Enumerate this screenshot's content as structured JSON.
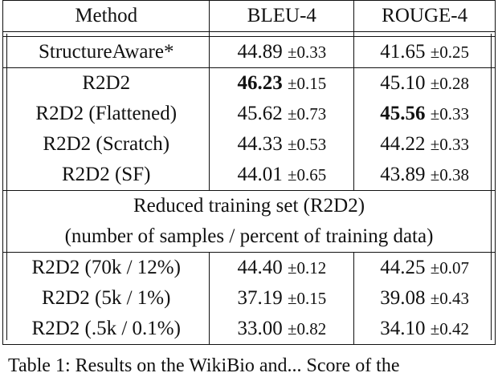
{
  "header": {
    "method": "Method",
    "bleu": "BLEU-4",
    "rouge": "ROUGE-4"
  },
  "baseline": [
    {
      "method": "StructureAware*",
      "bleu": "44.89",
      "bleu_pm": "±0.33",
      "rouge": "41.65",
      "rouge_pm": "±0.25"
    }
  ],
  "main": [
    {
      "method": "R2D2",
      "bleu": "46.23",
      "bleu_pm": "±0.15",
      "rouge": "45.10",
      "rouge_pm": "±0.28"
    },
    {
      "method": "R2D2 (Flattened)",
      "bleu": "45.62",
      "bleu_pm": "±0.73",
      "rouge": "45.56",
      "rouge_pm": "±0.33"
    },
    {
      "method": "R2D2 (Scratch)",
      "bleu": "44.33",
      "bleu_pm": "±0.53",
      "rouge": "44.22",
      "rouge_pm": "±0.33"
    },
    {
      "method": "R2D2 (SF)",
      "bleu": "44.01",
      "bleu_pm": "±0.65",
      "rouge": "43.89",
      "rouge_pm": "±0.38"
    }
  ],
  "reduced_section": {
    "title": "Reduced training set (R2D2)",
    "subtitle": "(number of samples / percent of training data)"
  },
  "reduced": [
    {
      "method": "R2D2 (70k / 12%)",
      "bleu": "44.40",
      "bleu_pm": "±0.12",
      "rouge": "44.25",
      "rouge_pm": "±0.07"
    },
    {
      "method": "R2D2 (5k / 1%)",
      "bleu": "37.19",
      "bleu_pm": "±0.15",
      "rouge": "39.08",
      "rouge_pm": "±0.43"
    },
    {
      "method": "R2D2 (.5k / 0.1%)",
      "bleu": "33.00",
      "bleu_pm": "±0.82",
      "rouge": "34.10",
      "rouge_pm": "±0.42"
    }
  ],
  "caption": "Table 1: Results on the WikiBio and... Score of the"
}
